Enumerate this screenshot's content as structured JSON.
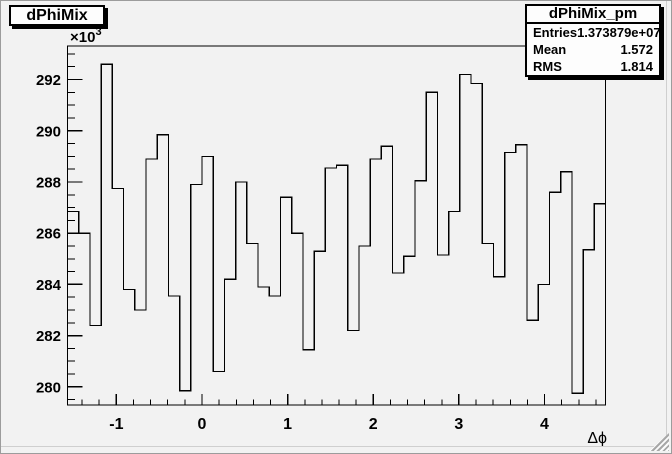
{
  "title_box": {
    "label": "dPhiMix"
  },
  "stats_box": {
    "title": "dPhiMix_pm",
    "rows": [
      {
        "label": "Entries",
        "value": "1.373879e+07"
      },
      {
        "label": "Mean",
        "value": "1.572"
      },
      {
        "label": "RMS",
        "value": "1.814"
      }
    ]
  },
  "chart_data": {
    "type": "bar",
    "draw_style": "step-outline-histogram",
    "title": "dPhiMix",
    "xlabel": "Δϕ",
    "ylabel": "",
    "y_axis_multiplier": "×10",
    "y_axis_multiplier_exponent": "3",
    "x_range": [
      -1.5708,
      4.7124
    ],
    "y_range_thousands": [
      279.29,
      293.31
    ],
    "n_bins": 48,
    "x_major_ticks": [
      -1,
      0,
      1,
      2,
      3,
      4
    ],
    "x_minor_tick_step": 0.2,
    "y_major_ticks_thousands": [
      280,
      282,
      284,
      286,
      288,
      290,
      292
    ],
    "y_minor_tick_step_thousands": 0.5,
    "grid": false,
    "legend": false,
    "line_color": "#000000",
    "background_color": "#f2f2f2",
    "values_thousands": [
      286.85,
      286.0,
      282.4,
      292.6,
      287.75,
      283.8,
      283.0,
      288.9,
      289.85,
      283.55,
      279.85,
      287.9,
      289.0,
      280.6,
      284.2,
      288.0,
      285.6,
      283.9,
      283.55,
      287.4,
      286.0,
      281.45,
      285.3,
      288.55,
      288.65,
      282.2,
      285.5,
      288.9,
      289.4,
      284.45,
      285.1,
      288.05,
      291.5,
      285.15,
      286.85,
      292.2,
      291.85,
      285.6,
      284.3,
      289.15,
      289.45,
      282.6,
      284.0,
      287.6,
      288.4,
      279.75,
      285.35,
      287.15
    ]
  }
}
